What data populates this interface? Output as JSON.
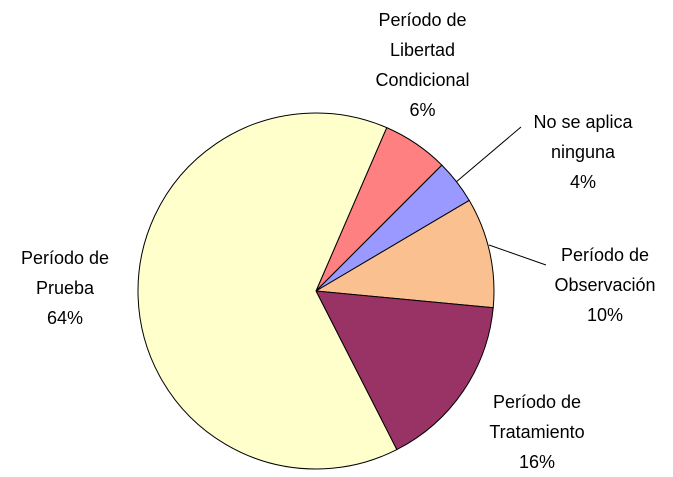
{
  "chart_data": {
    "type": "pie",
    "categories": [
      "Período de Libertad Condicional",
      "No se aplica ninguna",
      "Período de Observación",
      "Período de Tratamiento",
      "Período de Prueba"
    ],
    "values": [
      6,
      4,
      10,
      16,
      64
    ],
    "value_labels": [
      "6%",
      "4%",
      "10%",
      "16%",
      "64%"
    ],
    "colors": [
      "#ff8080",
      "#9999ff",
      "#fac090",
      "#993366",
      "#ffffcc"
    ]
  }
}
